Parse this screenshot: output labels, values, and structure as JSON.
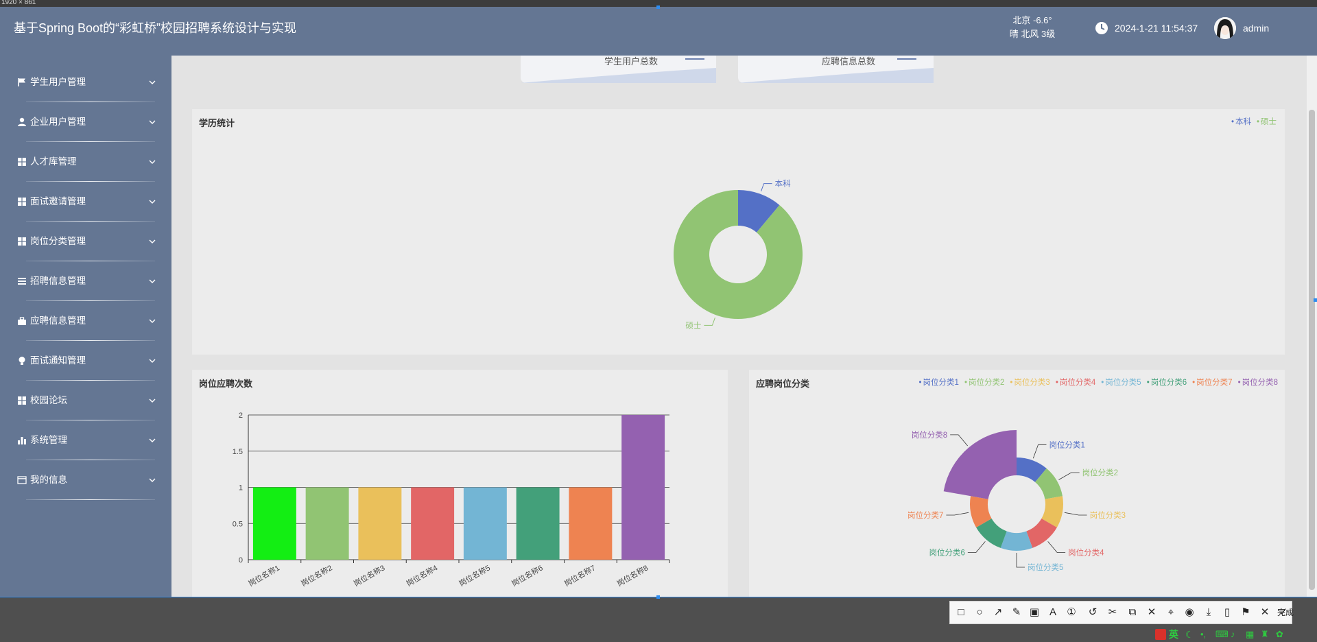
{
  "overlay": {
    "dimension_label": "1920 × 861"
  },
  "header": {
    "title": "基于Spring Boot的“彩虹桥”校园招聘系统设计与实现",
    "weather_line1": "北京  -6.6°",
    "weather_line2": "晴  北风  3级",
    "datetime": "2024-1-21 11:54:37",
    "username": "admin"
  },
  "sidebar": {
    "items": [
      {
        "label": "学生用户管理",
        "icon": "flag-icon"
      },
      {
        "label": "企业用户管理",
        "icon": "user-icon"
      },
      {
        "label": "人才库管理",
        "icon": "grid-icon"
      },
      {
        "label": "面试邀请管理",
        "icon": "grid-icon"
      },
      {
        "label": "岗位分类管理",
        "icon": "grid-icon"
      },
      {
        "label": "招聘信息管理",
        "icon": "list-icon"
      },
      {
        "label": "应聘信息管理",
        "icon": "briefcase-icon"
      },
      {
        "label": "面试通知管理",
        "icon": "bulb-icon"
      },
      {
        "label": "校园论坛",
        "icon": "grid-icon"
      },
      {
        "label": "系统管理",
        "icon": "bar-chart-icon"
      },
      {
        "label": "我的信息",
        "icon": "id-card-icon"
      }
    ]
  },
  "stats": {
    "students_label": "学生用户总数",
    "applications_label": "应聘信息总数"
  },
  "colors": {
    "header_bg": "#647693",
    "content_bg": "#e3e3e3",
    "panel_bg": "#ececec",
    "palette": [
      "#5470c6",
      "#91c473",
      "#eac05b",
      "#e26666",
      "#73b5d4",
      "#43a07a",
      "#ee8351",
      "#9461b0"
    ]
  },
  "chart_data": [
    {
      "type": "pie",
      "title": "学历统计",
      "donut": true,
      "legend_position": "top-right",
      "labels": [
        "本科",
        "硕士"
      ],
      "values": [
        1,
        8
      ],
      "colors": [
        "#5470c6",
        "#91c473"
      ]
    },
    {
      "type": "bar",
      "title": "岗位应聘次数",
      "categories": [
        "岗位名称1",
        "岗位名称2",
        "岗位名称3",
        "岗位名称4",
        "岗位名称5",
        "岗位名称6",
        "岗位名称7",
        "岗位名称8"
      ],
      "values": [
        1,
        1,
        1,
        1,
        1,
        1,
        1,
        2
      ],
      "colors": [
        "#13ee13",
        "#91c473",
        "#eac05b",
        "#e26666",
        "#73b5d4",
        "#43a07a",
        "#ee8351",
        "#9461b0"
      ],
      "ylim": [
        0,
        2
      ],
      "yticks": [
        "0",
        "0.5",
        "1",
        "1.5",
        "2"
      ],
      "grid": true
    },
    {
      "type": "pie",
      "title": "应聘岗位分类",
      "rose": true,
      "legend_position": "top-right",
      "labels": [
        "岗位分类1",
        "岗位分类2",
        "岗位分类3",
        "岗位分类4",
        "岗位分类5",
        "岗位分类6",
        "岗位分类7",
        "岗位分类8"
      ],
      "values": [
        1,
        1,
        1,
        1,
        1,
        1,
        1,
        2
      ],
      "colors": [
        "#5470c6",
        "#91c473",
        "#eac05b",
        "#e26666",
        "#73b5d4",
        "#43a07a",
        "#ee8351",
        "#9461b0"
      ]
    }
  ],
  "toolbar": {
    "done_label": "完成"
  },
  "taskbar": {
    "ime_label": "英"
  }
}
